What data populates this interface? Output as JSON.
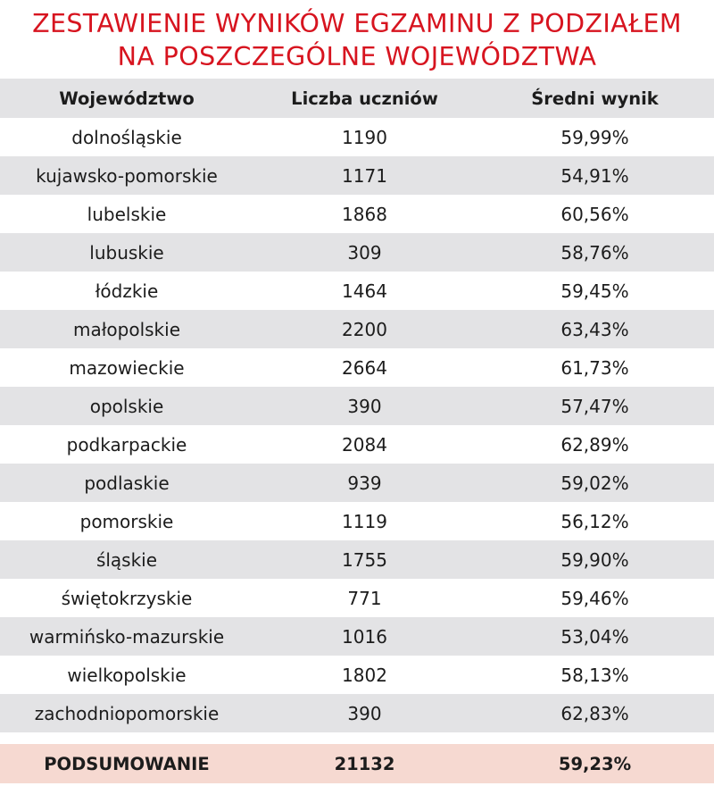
{
  "title": {
    "line1": "ZESTAWIENIE WYNIKÓW EGZAMINU Z PODZIAŁEM",
    "line2": "NA POSZCZEGÓLNE WOJEWÓDZTWA"
  },
  "colors": {
    "title": "#d7141f",
    "stripe": "#e3e3e5",
    "summary_row": "#f6d9d1"
  },
  "chart_data": {
    "type": "table",
    "title": "ZESTAWIENIE WYNIKÓW EGZAMINU Z PODZIAŁEM NA POSZCZEGÓLNE WOJEWÓDZTWA",
    "columns": [
      "Województwo",
      "Liczba uczniów",
      "Średni wynik"
    ],
    "rows": [
      [
        "dolnośląskie",
        "1190",
        "59,99%"
      ],
      [
        "kujawsko-pomorskie",
        "1171",
        "54,91%"
      ],
      [
        "lubelskie",
        "1868",
        "60,56%"
      ],
      [
        "lubuskie",
        "309",
        "58,76%"
      ],
      [
        "łódzkie",
        "1464",
        "59,45%"
      ],
      [
        "małopolskie",
        "2200",
        "63,43%"
      ],
      [
        "mazowieckie",
        "2664",
        "61,73%"
      ],
      [
        "opolskie",
        "390",
        "57,47%"
      ],
      [
        "podkarpackie",
        "2084",
        "62,89%"
      ],
      [
        "podlaskie",
        "939",
        "59,02%"
      ],
      [
        "pomorskie",
        "1119",
        "56,12%"
      ],
      [
        "śląskie",
        "1755",
        "59,90%"
      ],
      [
        "świętokrzyskie",
        "771",
        "59,46%"
      ],
      [
        "warmińsko-mazurskie",
        "1016",
        "53,04%"
      ],
      [
        "wielkopolskie",
        "1802",
        "58,13%"
      ],
      [
        "zachodniopomorskie",
        "390",
        "62,83%"
      ]
    ],
    "summary": [
      "PODSUMOWANIE",
      "21132",
      "59,23%"
    ]
  }
}
